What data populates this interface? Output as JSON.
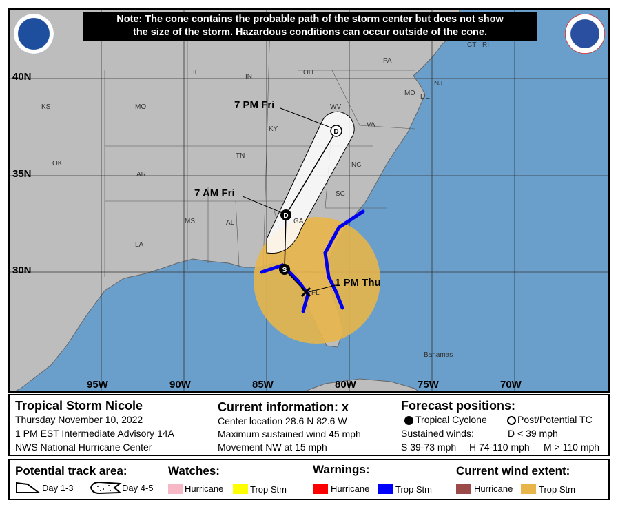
{
  "note": {
    "line1": "Note: The cone contains the probable path of the storm center but does not show",
    "line2": "the size of the storm. Hazardous conditions can occur outside of the cone."
  },
  "logos": {
    "left": "NOAA",
    "right": "NATIONAL WEATHER SERVICE"
  },
  "latitudes": [
    "40N",
    "35N",
    "30N"
  ],
  "longitudes": [
    "95W",
    "90W",
    "85W",
    "80W",
    "75W",
    "70W"
  ],
  "states": [
    "KS",
    "MO",
    "IL",
    "IN",
    "OH",
    "PA",
    "NJ",
    "DE",
    "MD",
    "WV",
    "VA",
    "KY",
    "TN",
    "NC",
    "SC",
    "GA",
    "AL",
    "MS",
    "AR",
    "OK",
    "LA",
    "FL",
    "CT",
    "RI"
  ],
  "places": {
    "bahamas": "Bahamas"
  },
  "track": [
    {
      "time": "1 PM Thu",
      "marker": "x",
      "type": "current"
    },
    {
      "time": "",
      "marker": "S",
      "type": "tropical-cyclone"
    },
    {
      "time": "7 AM Fri",
      "marker": "D",
      "type": "tropical-cyclone"
    },
    {
      "time": "7 PM Fri",
      "marker": "D",
      "type": "post-potential"
    }
  ],
  "info": {
    "storm_name": "Tropical Storm Nicole",
    "date": "Thursday November 10, 2022",
    "advisory": "1 PM EST Intermediate Advisory 14A",
    "center": "NWS National Hurricane Center",
    "current_title": "Current information: x",
    "location": "Center location 28.6 N 82.6 W",
    "max_wind": "Maximum sustained wind 45 mph",
    "movement": "Movement NW at 15 mph",
    "forecast_title": "Forecast positions:",
    "tc": "Tropical Cyclone",
    "ptc": "Post/Potential TC",
    "sustained": "Sustained winds:",
    "d": "D < 39 mph",
    "s": "S 39-73 mph",
    "hh": "H 74-110 mph",
    "m": "M > 110 mph"
  },
  "legend": {
    "track_title": "Potential track area:",
    "day13": "Day 1-3",
    "day45": "Day 4-5",
    "watches_title": "Watches:",
    "warnings_title": "Warnings:",
    "wind_title": "Current wind extent:",
    "hurricane": "Hurricane",
    "tropstm": "Trop Stm"
  },
  "colors": {
    "ocean": "#6b9fcb",
    "land": "#bdbdbd",
    "hurricane_watch": "#f7b8c6",
    "ts_watch": "#ffff00",
    "hurricane_warning": "#ff0000",
    "ts_warning": "#0000ff",
    "hurricane_wind": "#9b4a4a",
    "ts_wind": "#e8b54a"
  }
}
